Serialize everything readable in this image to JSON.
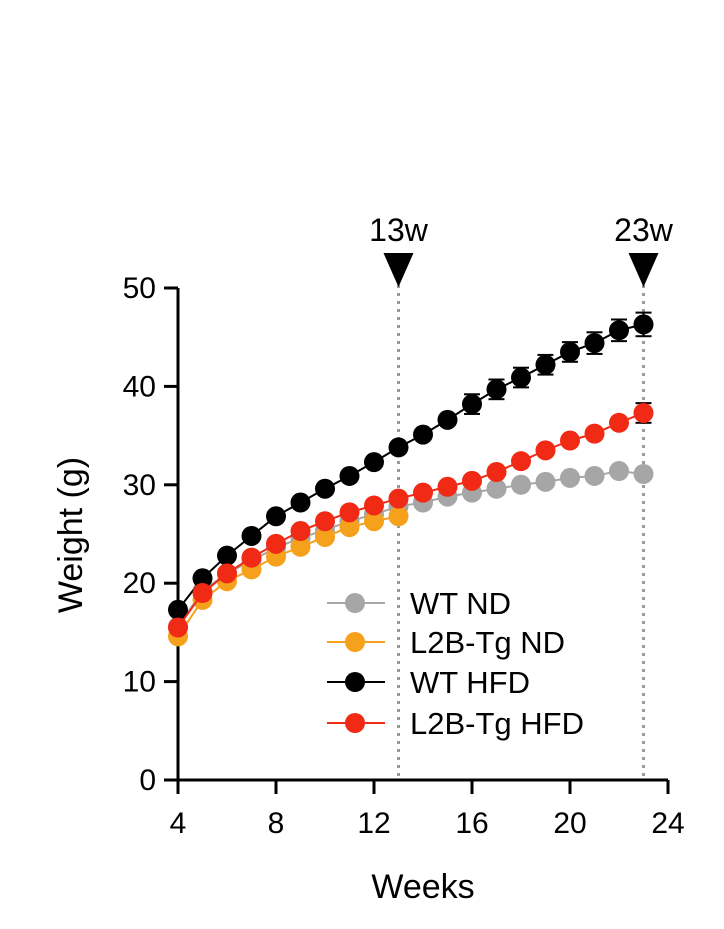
{
  "chart_data": {
    "type": "line",
    "title": "",
    "xlabel": "Weeks",
    "ylabel": "Weight (g)",
    "xlim": [
      4,
      24
    ],
    "ylim": [
      0,
      50
    ],
    "xticks": [
      4,
      8,
      12,
      16,
      20,
      24
    ],
    "yticks": [
      0,
      10,
      20,
      30,
      40,
      50
    ],
    "x": [
      4,
      5,
      6,
      7,
      8,
      9,
      10,
      11,
      12,
      13,
      14,
      15,
      16,
      17,
      18,
      19,
      20,
      21,
      22,
      23
    ],
    "series": [
      {
        "name": "WT ND",
        "color": "#a6a6a6",
        "line_color": "#a6a6a6",
        "x": [
          4,
          5,
          6,
          7,
          8,
          9,
          10,
          11,
          12,
          13,
          14,
          15,
          16,
          17,
          18,
          19,
          20,
          21,
          22,
          23
        ],
        "values": [
          15.6,
          19.2,
          21.0,
          22.3,
          23.6,
          24.6,
          25.4,
          26.3,
          27.0,
          27.8,
          28.2,
          28.8,
          29.2,
          29.6,
          30.0,
          30.3,
          30.7,
          30.9,
          31.4,
          31.1
        ],
        "errors": [
          0.4,
          0.4,
          0.4,
          0.4,
          0.4,
          0.4,
          0.4,
          0.4,
          0.4,
          0.5,
          0.5,
          0.5,
          0.5,
          0.5,
          0.5,
          0.5,
          0.5,
          0.6,
          0.6,
          0.6
        ]
      },
      {
        "name": "L2B-Tg ND",
        "color": "#f5a11c",
        "line_color": "#f5a11c",
        "x": [
          4,
          5,
          6,
          7,
          8,
          9,
          10,
          11,
          12,
          13
        ],
        "values": [
          14.6,
          18.3,
          20.2,
          21.4,
          22.7,
          23.7,
          24.7,
          25.7,
          26.3,
          26.8
        ],
        "errors": [
          0.4,
          0.4,
          0.4,
          0.4,
          0.4,
          0.4,
          0.4,
          0.4,
          0.4,
          0.4
        ]
      },
      {
        "name": "WT HFD",
        "color": "#000000",
        "line_color": "#000000",
        "x": [
          4,
          5,
          6,
          7,
          8,
          9,
          10,
          11,
          12,
          13,
          14,
          15,
          16,
          17,
          18,
          19,
          20,
          21,
          22,
          23
        ],
        "values": [
          17.3,
          20.5,
          22.8,
          24.8,
          26.8,
          28.2,
          29.6,
          30.9,
          32.3,
          33.8,
          35.1,
          36.6,
          38.2,
          39.7,
          40.9,
          42.2,
          43.5,
          44.4,
          45.7,
          46.3
        ],
        "errors": [
          0.5,
          0.5,
          0.5,
          0.6,
          0.6,
          0.6,
          0.6,
          0.6,
          0.6,
          0.7,
          0.7,
          0.8,
          1.0,
          1.0,
          1.0,
          1.0,
          1.0,
          1.1,
          1.1,
          1.2
        ]
      },
      {
        "name": "L2B-Tg HFD",
        "color": "#f02a14",
        "line_color": "#f02a14",
        "x": [
          4,
          5,
          6,
          7,
          8,
          9,
          10,
          11,
          12,
          13,
          14,
          15,
          16,
          17,
          18,
          19,
          20,
          21,
          22,
          23
        ],
        "values": [
          15.5,
          19.0,
          21.0,
          22.6,
          24.0,
          25.3,
          26.3,
          27.2,
          27.9,
          28.6,
          29.2,
          29.8,
          30.4,
          31.3,
          32.4,
          33.5,
          34.5,
          35.2,
          36.3,
          37.3
        ],
        "errors": [
          0.4,
          0.4,
          0.4,
          0.4,
          0.4,
          0.4,
          0.4,
          0.4,
          0.4,
          0.5,
          0.5,
          0.5,
          0.5,
          0.6,
          0.6,
          0.7,
          0.7,
          0.8,
          0.9,
          1.0
        ]
      }
    ],
    "annotations": [
      {
        "label": "13w",
        "x": 13
      },
      {
        "label": "23w",
        "x": 23
      }
    ],
    "legend_position": "bottom-right",
    "grid": false
  }
}
